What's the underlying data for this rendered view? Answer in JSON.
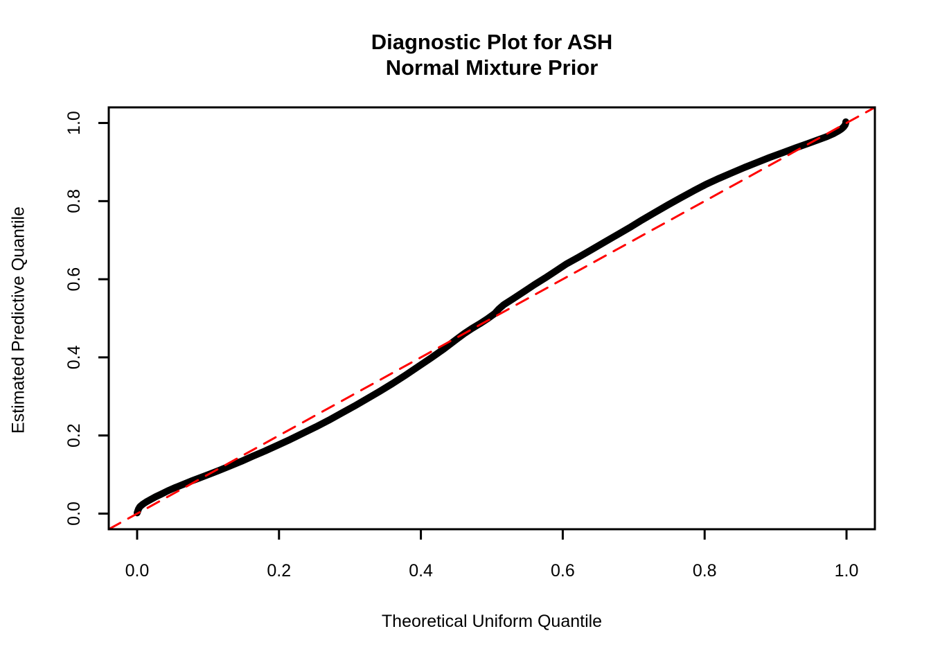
{
  "chart_data": {
    "type": "line",
    "title_lines": [
      "Diagnostic Plot for ASH",
      "Normal Mixture Prior"
    ],
    "xlabel": "Theoretical Uniform Quantile",
    "ylabel": "Estimated Predictive Quantile",
    "xlim": [
      -0.04,
      1.04
    ],
    "ylim": [
      -0.04,
      1.04
    ],
    "x_ticks": [
      0.0,
      0.2,
      0.4,
      0.6,
      0.8,
      1.0
    ],
    "y_ticks": [
      0.0,
      0.2,
      0.4,
      0.6,
      0.8,
      1.0
    ],
    "x_tick_labels": [
      "0.0",
      "0.2",
      "0.4",
      "0.6",
      "0.8",
      "1.0"
    ],
    "y_tick_labels": [
      "0.0",
      "0.2",
      "0.4",
      "0.6",
      "0.8",
      "1.0"
    ],
    "grid": false,
    "legend": "none",
    "series": [
      {
        "name": "estimated-vs-theoretical-quantile-curve",
        "type": "line",
        "color": "#000000",
        "line_width": 10,
        "style": "solid",
        "points": [
          [
            0.0,
            0.002
          ],
          [
            0.002,
            0.012
          ],
          [
            0.004,
            0.018
          ],
          [
            0.008,
            0.024
          ],
          [
            0.013,
            0.03
          ],
          [
            0.019,
            0.036
          ],
          [
            0.026,
            0.043
          ],
          [
            0.034,
            0.05
          ],
          [
            0.043,
            0.058
          ],
          [
            0.053,
            0.066
          ],
          [
            0.064,
            0.074
          ],
          [
            0.076,
            0.083
          ],
          [
            0.089,
            0.092
          ],
          [
            0.102,
            0.101
          ],
          [
            0.116,
            0.111
          ],
          [
            0.131,
            0.122
          ],
          [
            0.147,
            0.134
          ],
          [
            0.163,
            0.147
          ],
          [
            0.18,
            0.16
          ],
          [
            0.198,
            0.175
          ],
          [
            0.216,
            0.19
          ],
          [
            0.234,
            0.206
          ],
          [
            0.252,
            0.222
          ],
          [
            0.27,
            0.239
          ],
          [
            0.288,
            0.257
          ],
          [
            0.306,
            0.275
          ],
          [
            0.324,
            0.294
          ],
          [
            0.342,
            0.313
          ],
          [
            0.36,
            0.333
          ],
          [
            0.378,
            0.354
          ],
          [
            0.396,
            0.376
          ],
          [
            0.414,
            0.398
          ],
          [
            0.432,
            0.421
          ],
          [
            0.45,
            0.446
          ],
          [
            0.462,
            0.462
          ],
          [
            0.472,
            0.474
          ],
          [
            0.483,
            0.486
          ],
          [
            0.494,
            0.499
          ],
          [
            0.504,
            0.512
          ],
          [
            0.51,
            0.524
          ],
          [
            0.517,
            0.535
          ],
          [
            0.53,
            0.55
          ],
          [
            0.545,
            0.568
          ],
          [
            0.56,
            0.586
          ],
          [
            0.575,
            0.603
          ],
          [
            0.59,
            0.621
          ],
          [
            0.605,
            0.639
          ],
          [
            0.622,
            0.656
          ],
          [
            0.64,
            0.675
          ],
          [
            0.658,
            0.694
          ],
          [
            0.676,
            0.713
          ],
          [
            0.694,
            0.732
          ],
          [
            0.712,
            0.752
          ],
          [
            0.73,
            0.771
          ],
          [
            0.748,
            0.79
          ],
          [
            0.766,
            0.808
          ],
          [
            0.784,
            0.826
          ],
          [
            0.802,
            0.843
          ],
          [
            0.82,
            0.858
          ],
          [
            0.838,
            0.872
          ],
          [
            0.856,
            0.886
          ],
          [
            0.874,
            0.899
          ],
          [
            0.892,
            0.912
          ],
          [
            0.91,
            0.924
          ],
          [
            0.928,
            0.936
          ],
          [
            0.945,
            0.947
          ],
          [
            0.96,
            0.957
          ],
          [
            0.972,
            0.965
          ],
          [
            0.982,
            0.973
          ],
          [
            0.989,
            0.98
          ],
          [
            0.993,
            0.985
          ],
          [
            0.996,
            0.99
          ],
          [
            0.998,
            0.995
          ],
          [
            0.999,
            1.0
          ],
          [
            0.999,
            1.003
          ]
        ]
      },
      {
        "name": "identity-reference-line",
        "type": "line",
        "color": "#FF0000",
        "line_width": 3,
        "style": "dashed",
        "points": [
          [
            -0.04,
            -0.04
          ],
          [
            1.04,
            1.04
          ]
        ]
      }
    ]
  },
  "colors": {
    "background": "#FFFFFF",
    "axis": "#000000",
    "curve": "#000000",
    "reference_line": "#FF0000",
    "text": "#000000"
  }
}
